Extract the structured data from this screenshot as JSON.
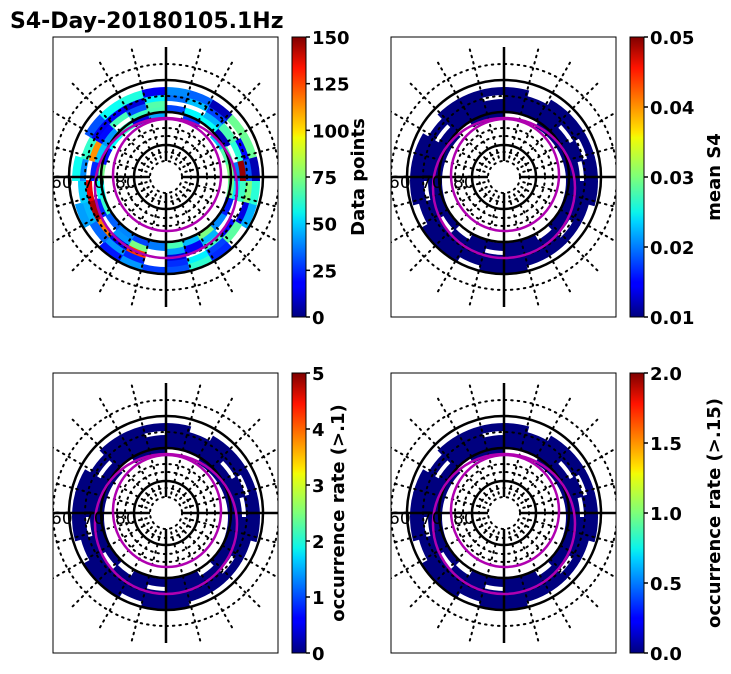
{
  "chart_data": {
    "type": "heatmap",
    "title": "S4-Day-20180105.1Hz",
    "projection": "polar (magnetic latitude / local time)",
    "panels": [
      {
        "id": "data-points",
        "colorbar_label": "Data points",
        "clim": [
          0,
          150
        ],
        "ticks": [
          "0",
          "25",
          "50",
          "75",
          "100",
          "125",
          "150"
        ],
        "tick_values": [
          0,
          25,
          50,
          75,
          100,
          125,
          150
        ],
        "colormap": "jet",
        "ring_fill": "mixed",
        "lat_labels": [
          "60",
          "70",
          "80"
        ]
      },
      {
        "id": "mean-s4",
        "colorbar_label": "mean S4",
        "clim": [
          0.01,
          0.05
        ],
        "ticks": [
          "0.01",
          "0.02",
          "0.03",
          "0.04",
          "0.05"
        ],
        "tick_values": [
          0.01,
          0.02,
          0.03,
          0.04,
          0.05
        ],
        "colormap": "jet",
        "ring_fill": "low",
        "lat_labels": [
          "60",
          "70",
          "80"
        ]
      },
      {
        "id": "occ-rate-01",
        "colorbar_label": "occurrence rate (>.1)",
        "clim": [
          0,
          5
        ],
        "ticks": [
          "0",
          "1",
          "2",
          "3",
          "4",
          "5"
        ],
        "tick_values": [
          0,
          1,
          2,
          3,
          4,
          5
        ],
        "colormap": "jet",
        "ring_fill": "low",
        "lat_labels": [
          "60",
          "70",
          "80"
        ]
      },
      {
        "id": "occ-rate-015",
        "colorbar_label": "occurrence rate (>.15)",
        "clim": [
          0,
          2
        ],
        "ticks": [
          "0.0",
          "0.5",
          "1.0",
          "1.5",
          "2.0"
        ],
        "tick_values": [
          0,
          0.5,
          1.0,
          1.5,
          2.0
        ],
        "colormap": "jet",
        "ring_fill": "low",
        "lat_labels": [
          "60",
          "70",
          "80"
        ]
      }
    ],
    "grid": true,
    "overlays": [
      "auroral oval boundaries (magenta)"
    ]
  },
  "colors": {
    "oval": "#b000b0",
    "grid": "#000000",
    "low": "#00007f"
  }
}
